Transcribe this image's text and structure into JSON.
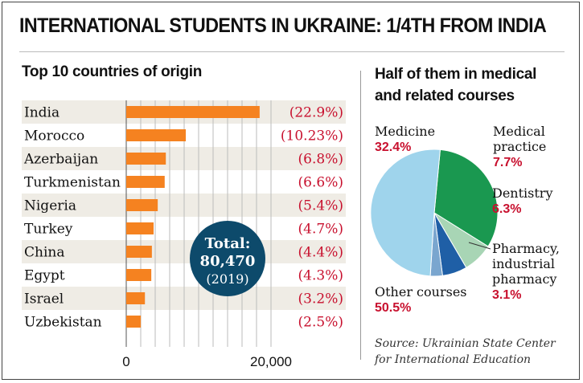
{
  "title": "INTERNATIONAL STUDENTS IN UKRAINE: 1/4TH FROM INDIA",
  "left_subtitle": "Top 10 countries of origin",
  "right_subtitle": [
    "Half of them in medical",
    "and related courses"
  ],
  "total": {
    "label": "Total:",
    "value": "80,470",
    "year": "(2019)"
  },
  "source": [
    "Source: Ukrainian State Center",
    "for International Education"
  ],
  "colors": {
    "bar": "#f58220",
    "stripe": "#efece5",
    "percent": "#c8102e",
    "total_circle": "#0d4a6b"
  },
  "chart_data": [
    {
      "type": "bar",
      "orientation": "horizontal",
      "title": "Top 10 countries of origin",
      "categories": [
        "India",
        "Morocco",
        "Azerbaijan",
        "Turkmenistan",
        "Nigeria",
        "Turkey",
        "China",
        "Egypt",
        "Israel",
        "Uzbekistan"
      ],
      "values": [
        18430,
        8230,
        5470,
        5310,
        4350,
        3780,
        3540,
        3460,
        2580,
        2010
      ],
      "percent_labels": [
        "(22.9%)",
        "(10.23%)",
        "(6.8%)",
        "(6.6%)",
        "(5.4%)",
        "(4.7%)",
        "(4.4%)",
        "(4.3%)",
        "(3.2%)",
        "(2.5%)"
      ],
      "xlim": [
        0,
        24000
      ],
      "xticks": [
        0,
        20000
      ],
      "xtick_labels": [
        "0",
        "20,000"
      ],
      "grid": true
    },
    {
      "type": "pie",
      "title": "Half of them in medical and related courses",
      "slices": [
        {
          "name": [
            "Medicine"
          ],
          "value": 32.4,
          "label": "32.4%",
          "color": "#1a9850"
        },
        {
          "name": [
            "Medical",
            "practice"
          ],
          "value": 7.7,
          "label": "7.7%",
          "color": "#a8d5b5"
        },
        {
          "name": [
            "Dentistry"
          ],
          "value": 6.3,
          "label": "6.3%",
          "color": "#1f5fa6"
        },
        {
          "name": [
            "Pharmacy,",
            "industrial",
            "pharmacy"
          ],
          "value": 3.1,
          "label": "3.1%",
          "color": "#7aa6cf"
        },
        {
          "name": [
            "Other courses"
          ],
          "value": 50.5,
          "label": "50.5%",
          "color": "#9fd4ec"
        }
      ]
    }
  ]
}
